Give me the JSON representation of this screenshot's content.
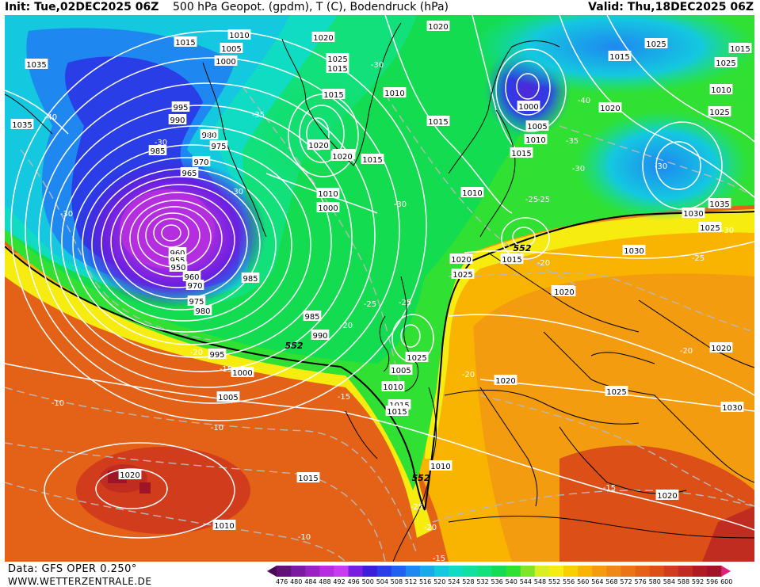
{
  "header": {
    "init": "Init: Tue,02DEC2025 06Z",
    "title": "500 hPa Geopot. (gpdm), T (C), Bodendruck (hPa)",
    "valid": "Valid: Thu,18DEC2025 06Z"
  },
  "footer": {
    "data_source": "Data: GFS OPER 0.250°",
    "website": "WWW.WETTERZENTRALE.DE"
  },
  "legend": {
    "unit_values": [
      "476",
      "480",
      "484",
      "488",
      "492",
      "496",
      "500",
      "504",
      "508",
      "512",
      "516",
      "520",
      "524",
      "528",
      "532",
      "536",
      "540",
      "544",
      "548",
      "552",
      "556",
      "560",
      "564",
      "568",
      "572",
      "576",
      "580",
      "584",
      "588",
      "592",
      "596",
      "600"
    ],
    "colors": [
      "#4a0a55",
      "#64107a",
      "#7e1aa0",
      "#9a22c0",
      "#b42ee0",
      "#c83cf0",
      "#7a1fe0",
      "#3a1ed8",
      "#2a3ee8",
      "#2062f0",
      "#1e88f0",
      "#1aaae8",
      "#14c8e0",
      "#10dcc4",
      "#10e0a0",
      "#12e07a",
      "#14dc50",
      "#30e032",
      "#7ee628",
      "#d8f020",
      "#f6ec10",
      "#f8d000",
      "#f8b400",
      "#f49c10",
      "#ee8818",
      "#ea7418",
      "#e46218",
      "#dc5018",
      "#d03c1c",
      "#c02c20",
      "#b01c24",
      "#a01428",
      "#e02080"
    ]
  },
  "pressure_labels": [
    "1035",
    "1035",
    "1015",
    "1005",
    "1000",
    "1010",
    "995",
    "990",
    "985",
    "980",
    "975",
    "970",
    "965",
    "960",
    "955",
    "950",
    "960",
    "970",
    "975",
    "985",
    "980",
    "985",
    "990",
    "995",
    "1000",
    "1005",
    "1010",
    "1015",
    "1020",
    "1025",
    "1010",
    "1015",
    "1020",
    "1010",
    "1000",
    "1005",
    "1015",
    "1010",
    "1015",
    "1020",
    "1025",
    "1015",
    "1020",
    "1015",
    "1010",
    "1005",
    "1000",
    "1010",
    "1015",
    "1020",
    "1030",
    "1025",
    "1015",
    "1010",
    "1025",
    "1035",
    "1030",
    "1025",
    "1015",
    "1020",
    "1025",
    "1030",
    "1020",
    "1020",
    "1015",
    "1020",
    "1015",
    "1025",
    "1020",
    "1025",
    "1010",
    "1015",
    "1020",
    "1025"
  ],
  "temp_labels": [
    "-30",
    "-40",
    "-30",
    "-35",
    "-30",
    "-30",
    "-30",
    "-40",
    "-35",
    "-30",
    "-30",
    "-25",
    "-30",
    "-25",
    "-25",
    "-20",
    "-20",
    "-25",
    "-20",
    "-20",
    "-15",
    "-10",
    "-10",
    "-15",
    "-20",
    "-25",
    "-20",
    "-15",
    "-15",
    "-10",
    "-30",
    "-25"
  ],
  "geopot_labels": [
    "552",
    "552",
    "552"
  ],
  "colors": {
    "pressure_line": "#ffffff",
    "temp_line": "#b8b8b8",
    "coast": "#000000",
    "geopot_552": "#000000"
  }
}
